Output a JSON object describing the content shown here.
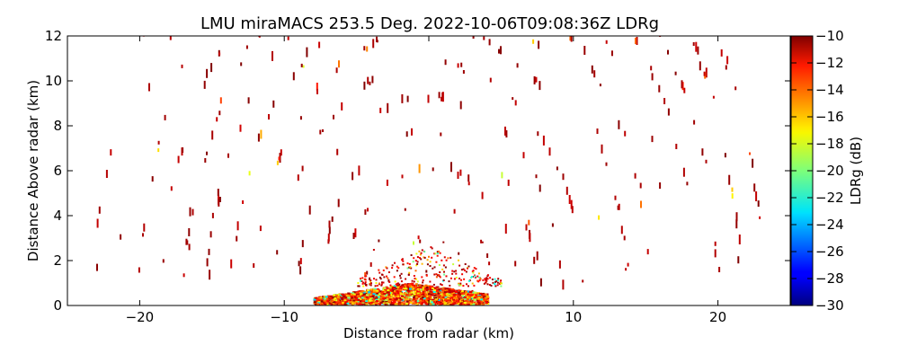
{
  "chart_data": {
    "type": "heatmap",
    "title": "LMU miraMACS 253.5 Deg. 2022-10-06T09:08:36Z  LDRg",
    "xlabel": "Distance from radar (km)",
    "ylabel": "Distance Above radar  (km)",
    "xlim": [
      -25,
      25
    ],
    "ylim": [
      0,
      12
    ],
    "xticks": [
      -20,
      -10,
      0,
      10,
      20
    ],
    "xtick_labels": [
      "−20",
      "−10",
      "0",
      "10",
      "20"
    ],
    "yticks": [
      0,
      2,
      4,
      6,
      8,
      10,
      12
    ],
    "ytick_labels": [
      "0",
      "2",
      "4",
      "6",
      "8",
      "10",
      "12"
    ],
    "colorbar": {
      "label": "LDRg (dB)",
      "range": [
        -30,
        -10
      ],
      "ticks": [
        -10,
        -12,
        -14,
        -16,
        -18,
        -20,
        -22,
        -24,
        -26,
        -28,
        -30
      ],
      "tick_labels": [
        "−10",
        "−12",
        "−14",
        "−16",
        "−18",
        "−20",
        "−22",
        "−24",
        "−26",
        "−28",
        "−30"
      ],
      "colormap": "jet"
    },
    "description_of_field": "RHI scan of linear depolarization ratio; sparse speckle returns (mostly near -10 dB) scattered on concentric range arcs up to ~23 km, with a dense mixed-value layer below ~1 km between about -8 and +4 km."
  }
}
